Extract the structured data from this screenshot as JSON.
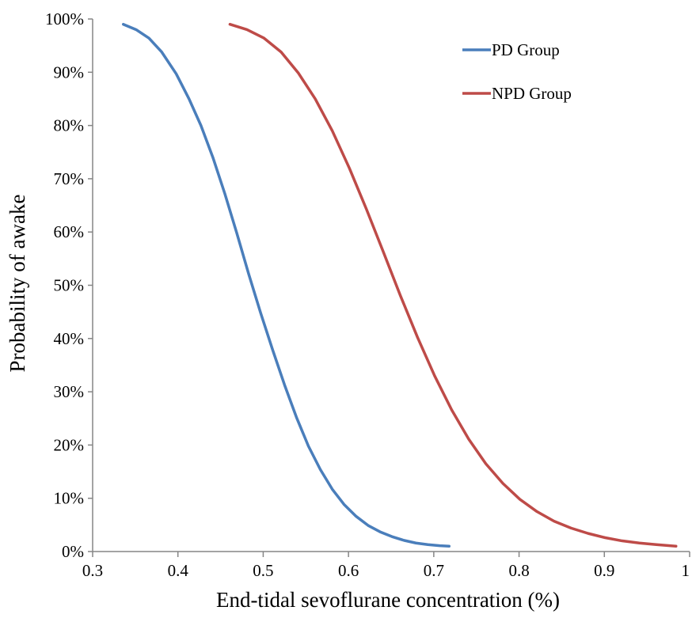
{
  "chart_data": {
    "type": "line",
    "title": "",
    "xlabel": "End-tidal sevoflurane concentration (%)",
    "ylabel": "Probability of  awake",
    "xlim": [
      0.3,
      1.0
    ],
    "ylim": [
      0,
      100
    ],
    "x_ticks": [
      "0.3",
      "0.4",
      "0.5",
      "0.6",
      "0.7",
      "0.8",
      "0.9",
      "1"
    ],
    "y_ticks": [
      "0%",
      "10%",
      "20%",
      "30%",
      "40%",
      "50%",
      "60%",
      "70%",
      "80%",
      "90%",
      "100%"
    ],
    "grid": false,
    "legend_position": "top-right",
    "series": [
      {
        "name": "PD Group",
        "color": "#4a7ebb",
        "x": [
          0.336,
          0.351,
          0.366,
          0.381,
          0.398,
          0.413,
          0.427,
          0.441,
          0.455,
          0.469,
          0.483,
          0.497,
          0.511,
          0.525,
          0.539,
          0.553,
          0.567,
          0.581,
          0.595,
          0.609,
          0.623,
          0.637,
          0.651,
          0.665,
          0.679,
          0.693,
          0.707,
          0.718
        ],
        "y": [
          99,
          98,
          96.4,
          93.8,
          89.7,
          85,
          80,
          74,
          67.2,
          59.8,
          52.1,
          44.8,
          37.9,
          31.3,
          25.2,
          19.8,
          15.4,
          11.7,
          8.8,
          6.6,
          4.9,
          3.7,
          2.8,
          2.1,
          1.6,
          1.3,
          1.1,
          1
        ]
      },
      {
        "name": "NPD Group",
        "color": "#be4b48",
        "x": [
          0.461,
          0.481,
          0.501,
          0.521,
          0.541,
          0.561,
          0.581,
          0.601,
          0.621,
          0.641,
          0.661,
          0.681,
          0.701,
          0.721,
          0.741,
          0.761,
          0.781,
          0.801,
          0.821,
          0.841,
          0.861,
          0.881,
          0.901,
          0.921,
          0.941,
          0.961,
          0.984
        ],
        "y": [
          99,
          98,
          96.4,
          93.8,
          89.9,
          85,
          79,
          72,
          64.3,
          56.2,
          48,
          40.2,
          33,
          26.6,
          21.1,
          16.5,
          12.8,
          9.8,
          7.5,
          5.7,
          4.4,
          3.4,
          2.6,
          2,
          1.6,
          1.3,
          1
        ]
      }
    ]
  }
}
